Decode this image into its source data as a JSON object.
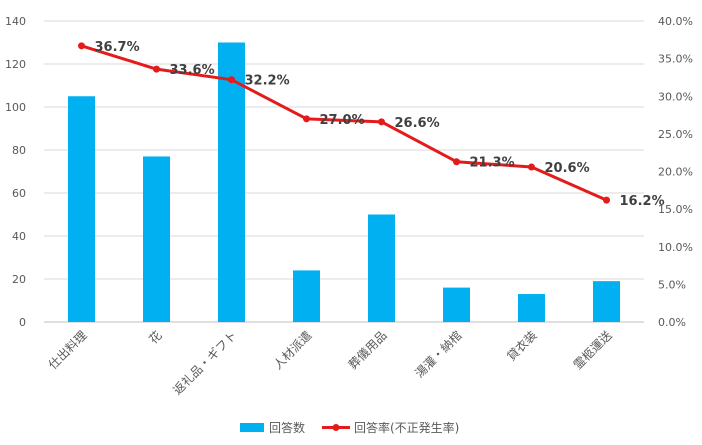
{
  "chart_data": {
    "type": "bar",
    "categories": [
      "仕出料理",
      "花",
      "返礼品・ギフト",
      "人材派遣",
      "葬儀用品",
      "湯灌・納棺",
      "貸衣装",
      "霊柩運送"
    ],
    "series": [
      {
        "name": "回答数",
        "type": "bar",
        "axis": "left",
        "color": "#00B0F0",
        "values": [
          105,
          77,
          130,
          24,
          50,
          16,
          13,
          19
        ]
      },
      {
        "name": "回答率(不正発生率)",
        "type": "line",
        "axis": "right",
        "color": "#E41B1B",
        "values": [
          36.7,
          33.6,
          32.2,
          27.0,
          26.6,
          21.3,
          20.6,
          16.2
        ],
        "labels": [
          "36.7%",
          "33.6%",
          "32.2%",
          "27.0%",
          "26.6%",
          "21.3%",
          "20.6%",
          "16.2%"
        ]
      }
    ],
    "y_left": {
      "ylim": [
        0,
        140
      ],
      "ticks": [
        "0",
        "20",
        "40",
        "60",
        "80",
        "100",
        "120",
        "140"
      ]
    },
    "y_right": {
      "ylim": [
        0,
        40
      ],
      "ticks": [
        "0.0%",
        "5.0%",
        "10.0%",
        "15.0%",
        "20.0%",
        "25.0%",
        "30.0%",
        "35.0%",
        "40.0%"
      ]
    },
    "grid": true,
    "legend_position": "bottom"
  }
}
